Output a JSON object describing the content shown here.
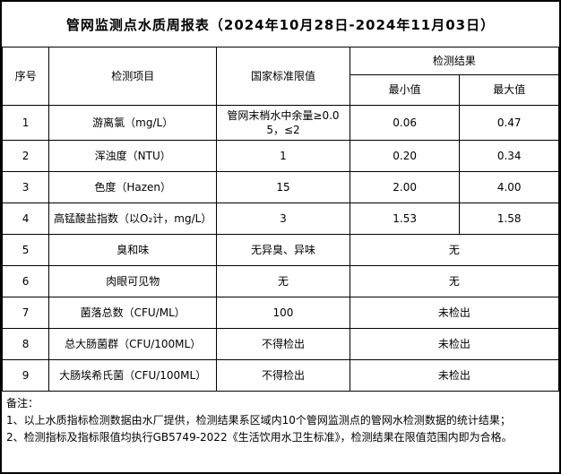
{
  "title": "管网监测点水质周报表（2024年10月28日-2024年11月03日）",
  "header": {
    "seq": "序号",
    "item": "检测项目",
    "limit": "国家标准限值",
    "result": "检测结果",
    "min": "最小值",
    "max": "最大值"
  },
  "rows": [
    {
      "seq": "1",
      "item": "游离氯（mg/L）",
      "limit": "管网末梢水中余量≥0.05，≤2",
      "min": "0.06",
      "max": "0.47"
    },
    {
      "seq": "2",
      "item": "浑浊度（NTU）",
      "limit": "1",
      "min": "0.20",
      "max": "0.34"
    },
    {
      "seq": "3",
      "item": "色度（Hazen）",
      "limit": "15",
      "min": "2.00",
      "max": "4.00"
    },
    {
      "seq": "4",
      "item": "高锰酸盐指数（以O₂计，mg/L）",
      "limit": "3",
      "min": "1.53",
      "max": "1.58"
    },
    {
      "seq": "5",
      "item": "臭和味",
      "limit": "无异臭、异味",
      "result": "无"
    },
    {
      "seq": "6",
      "item": "肉眼可见物",
      "limit": "无",
      "result": "无"
    },
    {
      "seq": "7",
      "item": "菌落总数（CFU/ML）",
      "limit": "100",
      "result": "未检出"
    },
    {
      "seq": "8",
      "item": "总大肠菌群（CFU/100ML）",
      "limit": "不得检出",
      "result": "未检出"
    },
    {
      "seq": "9",
      "item": "大肠埃希氏菌（CFU/100ML）",
      "limit": "不得检出",
      "result": "未检出"
    }
  ],
  "notes": {
    "label": "备注：",
    "line1": "1、以上水质指标检测数据由水厂提供，检测结果系区域内10个管网监测点的管网水检测数据的统计结果；",
    "line2": "2、检测指标及指标限值均执行GB5749-2022《生活饮用水卫生标准》，检测结果在限值范围内即为合格。"
  }
}
